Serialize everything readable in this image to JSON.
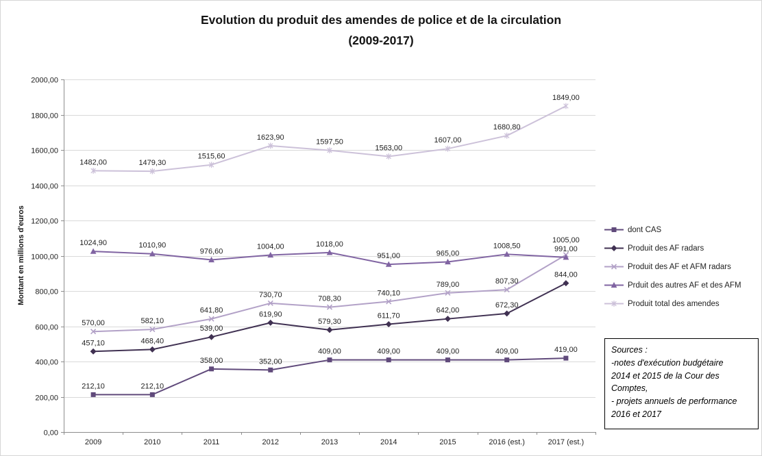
{
  "header": {
    "title_line1": "Evolution du produit des amendes de police et de la circulation",
    "title_line2": "(2009-2017)"
  },
  "chart_data": {
    "type": "line",
    "title": "Evolution du produit des amendes de police et de la circulation (2009-2017)",
    "xlabel": "",
    "ylabel": "Montant en millions d'euros",
    "ylim": [
      0,
      2000
    ],
    "ytick_step": 200,
    "grid": true,
    "legend_position": "right",
    "number_format": "fr-comma-2-decimals",
    "categories": [
      "2009",
      "2010",
      "2011",
      "2012",
      "2013",
      "2014",
      "2015",
      "2016 (est.)",
      "2017 (est.)"
    ],
    "series": [
      {
        "name": "dont CAS",
        "marker": "square",
        "color": "#604A7B",
        "values": [
          212.1,
          212.1,
          358.0,
          352.0,
          409.0,
          409.0,
          409.0,
          409.0,
          419.0
        ]
      },
      {
        "name": "Produit des AF radars",
        "marker": "diamond",
        "color": "#403152",
        "values": [
          457.1,
          468.4,
          539.0,
          619.9,
          579.3,
          611.7,
          642.0,
          672.3,
          844.0
        ]
      },
      {
        "name": "Produit des AF et AFM radars",
        "marker": "x",
        "color": "#B2A1C7",
        "values": [
          570.0,
          582.1,
          641.8,
          730.7,
          708.3,
          740.1,
          789.0,
          807.3,
          1005.0
        ]
      },
      {
        "name": "Prduit des autres AF et des AFM",
        "marker": "triangle",
        "color": "#8064A2",
        "values": [
          1024.9,
          1010.9,
          976.6,
          1004.0,
          1018.0,
          951.0,
          965.0,
          1008.5,
          991.0
        ]
      },
      {
        "name": "Produit total des amendes",
        "marker": "asterisk",
        "color": "#CCC1D9",
        "values": [
          1482.0,
          1479.3,
          1515.6,
          1623.9,
          1597.5,
          1563.0,
          1607.0,
          1680.8,
          1849.0
        ]
      }
    ]
  },
  "sources": {
    "text": "Sources :\n-notes  d'exécution budgétaire\n2014 et 2015 de la Cour des\nComptes,\n- projets annuels de performance\n2016 et 2017"
  }
}
